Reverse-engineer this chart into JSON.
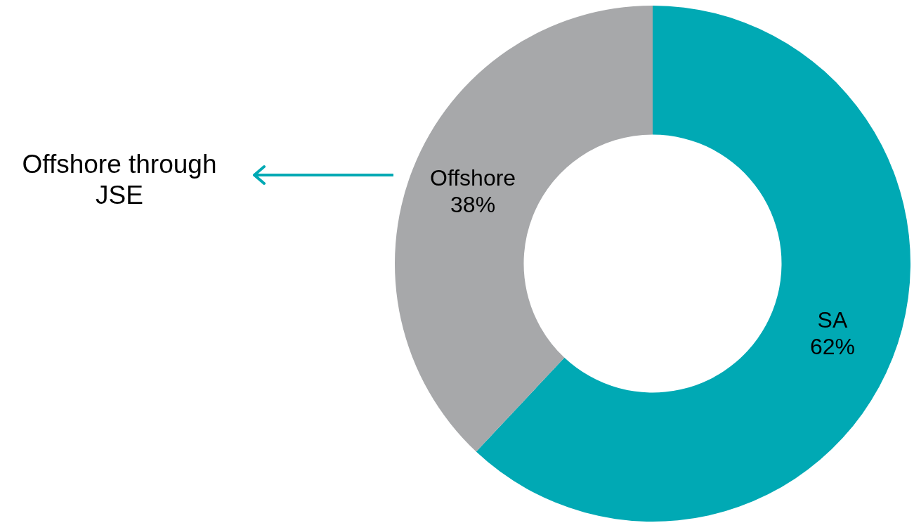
{
  "chart_data": {
    "type": "donut",
    "categories": [
      "SA",
      "Offshore"
    ],
    "values": [
      62,
      38
    ],
    "colors": [
      "#00a9b4",
      "#a7a8aa"
    ],
    "value_labels": [
      "62%",
      "38%"
    ],
    "legend": false,
    "annotations": [
      "Offshore through JSE"
    ]
  }
}
